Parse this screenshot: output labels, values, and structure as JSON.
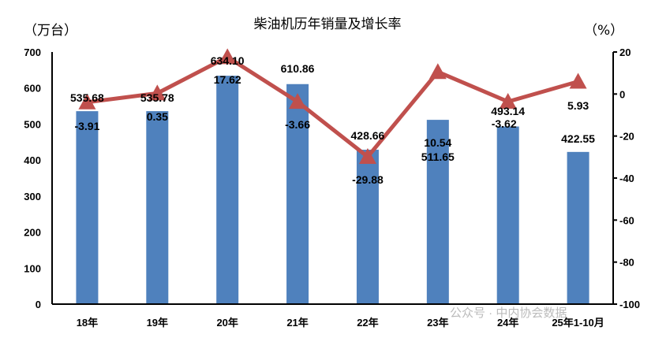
{
  "chart_data": {
    "type": "bar+line",
    "title": "柴油机历年销量及增长率",
    "ylabel_left": "（万台）",
    "ylabel_right": "（%）",
    "categories": [
      "18年",
      "19年",
      "20年",
      "21年",
      "22年",
      "23年",
      "24年",
      "25年1-10月"
    ],
    "series": [
      {
        "type": "bar",
        "axis": "left",
        "values": [
          535.68,
          535.78,
          634.1,
          610.86,
          428.66,
          511.65,
          493.14,
          422.55
        ],
        "labels": [
          "535.68",
          "535.78",
          "634.10",
          "610.86",
          "428.66",
          "511.65",
          "493.14",
          "422.55"
        ],
        "color": "#4f81bd"
      },
      {
        "type": "line",
        "axis": "right",
        "marker": "triangle",
        "values": [
          -3.91,
          0.35,
          17.62,
          -3.66,
          -29.88,
          10.54,
          -3.62,
          5.93
        ],
        "labels": [
          "-3.91",
          "0.35",
          "17.62",
          "-3.66",
          "-29.88",
          "10.54",
          "-3.62",
          "5.93"
        ],
        "color": "#c0504d"
      }
    ],
    "ylim_left": [
      0,
      700
    ],
    "ylim_right": [
      -100,
      20
    ],
    "yticks_left": [
      "0",
      "100",
      "200",
      "300",
      "400",
      "500",
      "600",
      "700"
    ],
    "yticks_right": [
      "-100",
      "-80",
      "-60",
      "-40",
      "-20",
      "0",
      "20"
    ],
    "grid": false,
    "legend": "none"
  },
  "watermark": "公众号 · 中内协会数据"
}
